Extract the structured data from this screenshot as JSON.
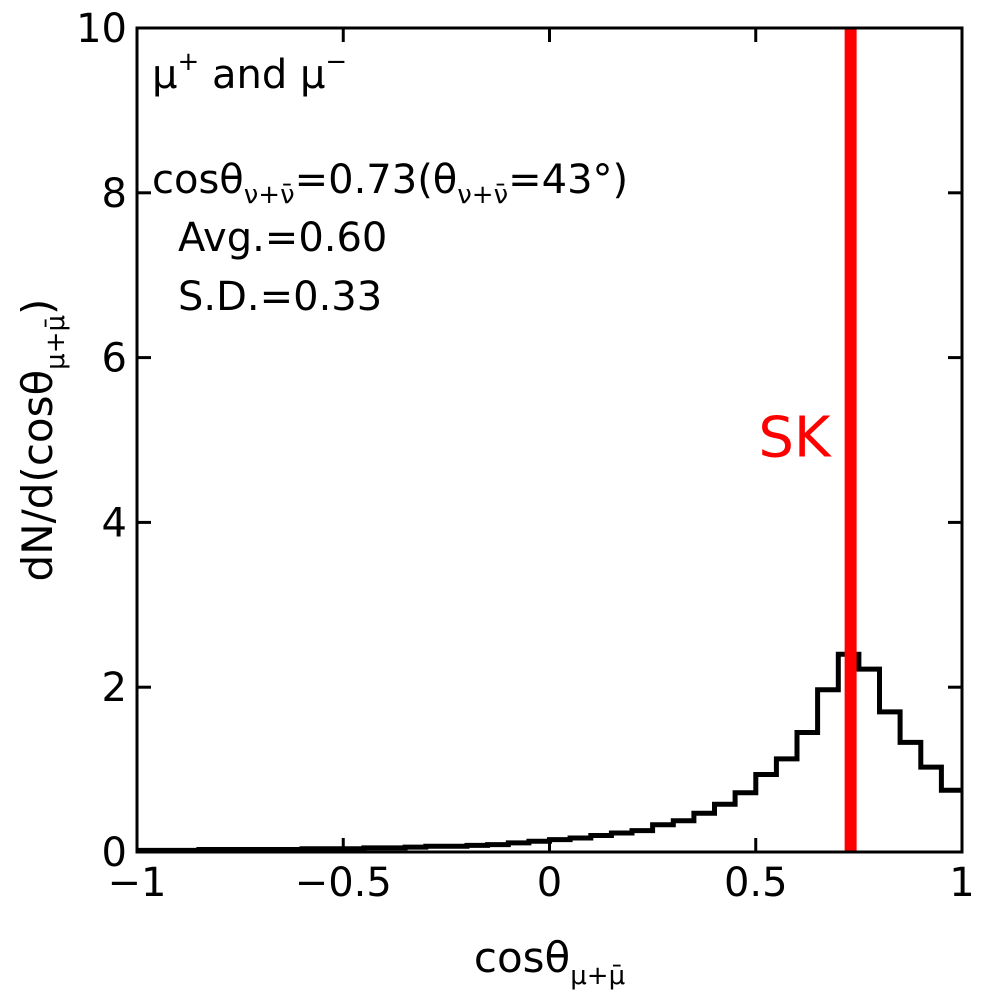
{
  "chart_data": {
    "type": "step",
    "xlim": [
      -1,
      1
    ],
    "ylim": [
      0,
      10
    ],
    "x_ticks": [
      -1,
      -0.5,
      0,
      0.5,
      1
    ],
    "x_tick_labels": [
      "−1",
      "−0.5",
      "0",
      "0.5",
      "1"
    ],
    "y_ticks": [
      0,
      2,
      4,
      6,
      8,
      10
    ],
    "y_tick_labels": [
      "0",
      "2",
      "4",
      "6",
      "8",
      "10"
    ],
    "xlabel": {
      "base": "cosθ",
      "sub": "μ+μ̄"
    },
    "ylabel": {
      "base": "dN/d(cosθ",
      "sub": "μ+μ̄",
      "close": ")"
    },
    "bin_width": 0.05,
    "bins_start": [
      -1.0,
      -0.95,
      -0.9,
      -0.85,
      -0.8,
      -0.75,
      -0.7,
      -0.65,
      -0.6,
      -0.55,
      -0.5,
      -0.45,
      -0.4,
      -0.35,
      -0.3,
      -0.25,
      -0.2,
      -0.15,
      -0.1,
      -0.05,
      0.0,
      0.05,
      0.1,
      0.15,
      0.2,
      0.25,
      0.3,
      0.35,
      0.4,
      0.45,
      0.5,
      0.55,
      0.6,
      0.65,
      0.7,
      0.75,
      0.8,
      0.85,
      0.9,
      0.95
    ],
    "values": [
      0.02,
      0.02,
      0.02,
      0.03,
      0.03,
      0.03,
      0.03,
      0.03,
      0.04,
      0.04,
      0.04,
      0.05,
      0.05,
      0.06,
      0.07,
      0.07,
      0.08,
      0.09,
      0.11,
      0.13,
      0.15,
      0.17,
      0.2,
      0.23,
      0.26,
      0.33,
      0.38,
      0.47,
      0.58,
      0.72,
      0.94,
      1.13,
      1.45,
      1.97,
      2.4,
      2.22,
      1.7,
      1.33,
      1.03,
      0.75
    ],
    "reference_line": {
      "x": 0.73,
      "label": "SK",
      "color": "#ff0000"
    },
    "annotations": {
      "title": {
        "mu1": "μ",
        "sup1": "+",
        "and": " and ",
        "mu2": "μ",
        "sup2": "−"
      },
      "cos_line": {
        "pre": "cosθ",
        "sub1": "ν+ν̄",
        "mid": "=0.73(θ",
        "sub2": "ν+ν̄",
        "post": "=43°)"
      },
      "avg": "Avg.=0.60",
      "sd": "S.D.=0.33"
    },
    "line_color": "#000000"
  }
}
